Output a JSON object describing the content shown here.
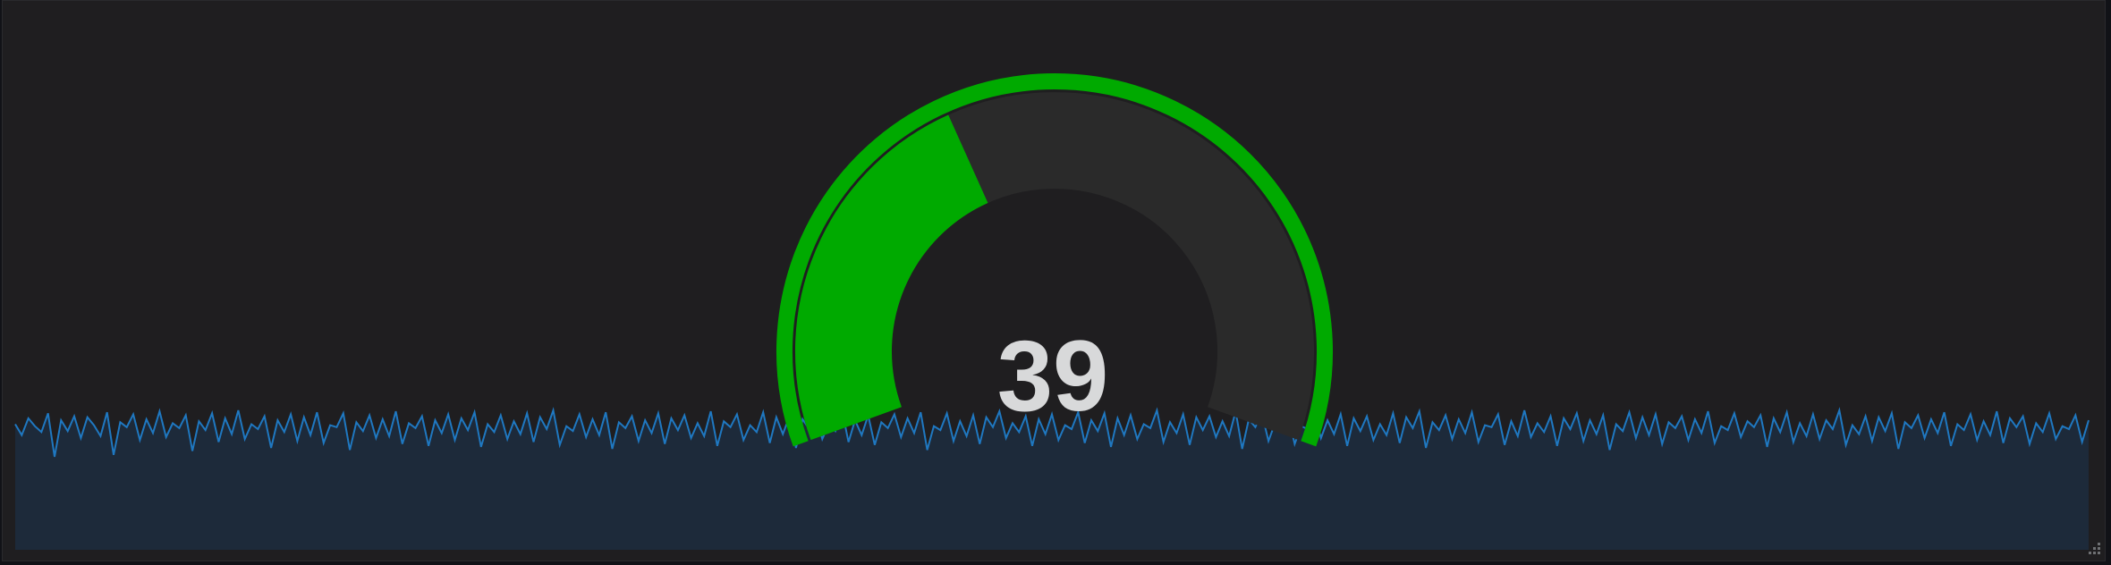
{
  "panel": {
    "type": "gauge-with-sparkline"
  },
  "gauge": {
    "value": 39,
    "display_value": "39",
    "min": 0,
    "max": 100,
    "threshold_color": "#00aa00",
    "track_color": "#2a2a2a",
    "value_color": "#00aa00",
    "text_color": "#d8d9da"
  },
  "sparkline": {
    "line_color": "#1f78c1",
    "fill_color": "#1d2a3a",
    "samples": [
      6.2,
      5.1,
      6.8,
      6.0,
      5.4,
      7.3,
      2.9,
      6.6,
      5.5,
      7.0,
      4.8,
      6.9,
      6.1,
      5.0,
      7.4,
      3.1,
      6.4,
      5.9,
      7.2,
      4.6,
      6.7,
      5.3,
      7.5,
      4.9,
      6.3,
      5.8,
      7.1,
      3.5,
      6.5,
      5.6,
      7.3,
      4.4,
      6.8,
      5.2,
      7.6,
      4.7,
      6.2,
      5.7,
      7.0,
      3.8,
      6.6,
      5.4,
      7.2,
      4.5,
      6.9,
      5.1,
      7.4,
      4.3,
      6.1,
      5.9,
      7.3,
      3.6,
      6.4,
      5.5,
      7.1,
      4.8,
      6.7,
      5.0,
      7.5,
      4.2,
      6.3,
      5.8,
      7.0,
      4.0,
      6.6,
      5.3,
      7.2,
      4.6,
      6.8,
      5.6,
      7.4,
      3.9,
      6.2,
      5.4,
      7.1,
      4.7,
      6.5,
      5.2,
      7.3,
      4.4,
      6.9,
      5.7,
      7.6,
      4.1,
      6.0,
      5.5,
      7.2,
      4.9,
      6.7,
      5.1,
      7.4,
      3.7,
      6.4,
      5.8,
      7.0,
      4.5,
      6.6,
      5.3,
      7.3,
      4.2,
      6.8,
      5.6,
      7.1,
      4.8,
      6.3,
      5.0,
      7.5,
      4.0,
      6.5,
      5.9,
      7.2,
      4.6,
      6.1,
      5.4,
      7.4,
      4.3,
      6.9,
      5.2,
      7.0,
      3.8,
      6.7,
      5.7,
      7.3,
      4.7,
      6.2,
      5.5,
      7.6,
      4.4,
      6.6,
      5.1,
      7.1,
      4.1,
      6.4,
      5.8,
      7.2,
      4.9,
      6.8,
      5.3,
      7.4,
      3.6,
      6.0,
      5.6,
      7.3,
      4.5,
      6.5,
      5.0,
      7.1,
      4.2,
      6.9,
      5.9,
      7.5,
      4.8,
      6.3,
      5.4,
      7.0,
      4.0,
      6.7,
      5.2,
      7.2,
      4.6,
      6.1,
      5.7,
      7.4,
      4.3,
      6.6,
      5.5,
      7.3,
      3.9,
      6.8,
      5.1,
      7.1,
      4.7,
      6.2,
      5.8,
      7.6,
      4.4,
      6.4,
      5.3,
      7.2,
      4.1,
      6.9,
      5.6,
      7.0,
      4.9,
      6.5,
      5.0,
      7.5,
      3.7,
      6.7,
      5.9,
      7.3,
      4.5,
      6.3,
      5.4,
      7.1,
      4.2,
      6.0,
      5.7,
      7.4,
      4.8,
      6.6,
      5.2,
      7.2,
      4.0,
      6.8,
      5.5,
      7.0,
      4.6,
      6.2,
      5.1,
      7.3,
      4.3,
      6.9,
      5.8,
      7.5,
      3.8,
      6.4,
      5.6,
      7.1,
      4.7,
      6.7,
      5.3,
      7.4,
      4.4,
      6.1,
      5.9,
      7.2,
      4.1,
      6.5,
      5.0,
      7.6,
      4.9,
      6.3,
      5.4,
      7.0,
      4.0,
      6.8,
      5.7,
      7.3,
      4.5,
      6.6,
      5.2,
      7.1,
      3.6,
      6.2,
      5.5,
      7.4,
      4.8,
      6.9,
      5.1,
      7.2,
      4.2,
      6.4,
      5.8,
      7.0,
      4.6,
      6.7,
      5.3,
      7.5,
      4.3,
      6.0,
      5.6,
      7.3,
      4.9,
      6.5,
      5.9,
      7.1,
      3.9,
      6.8,
      5.4,
      7.4,
      4.4,
      6.3,
      5.0,
      7.2,
      4.7,
      6.6,
      5.7,
      7.6,
      4.1,
      6.1,
      5.2,
      7.0,
      4.5,
      6.9,
      5.5,
      7.3,
      3.7,
      6.4,
      5.8,
      7.1,
      4.8,
      6.7,
      5.3,
      7.4,
      4.0,
      6.2,
      5.6,
      7.2,
      4.6,
      6.5,
      5.1,
      7.5,
      4.3,
      6.8,
      5.9,
      7.0,
      4.2,
      6.3,
      5.4,
      7.3,
      4.7,
      6.0,
      5.7,
      7.1,
      4.4,
      6.6
    ]
  }
}
